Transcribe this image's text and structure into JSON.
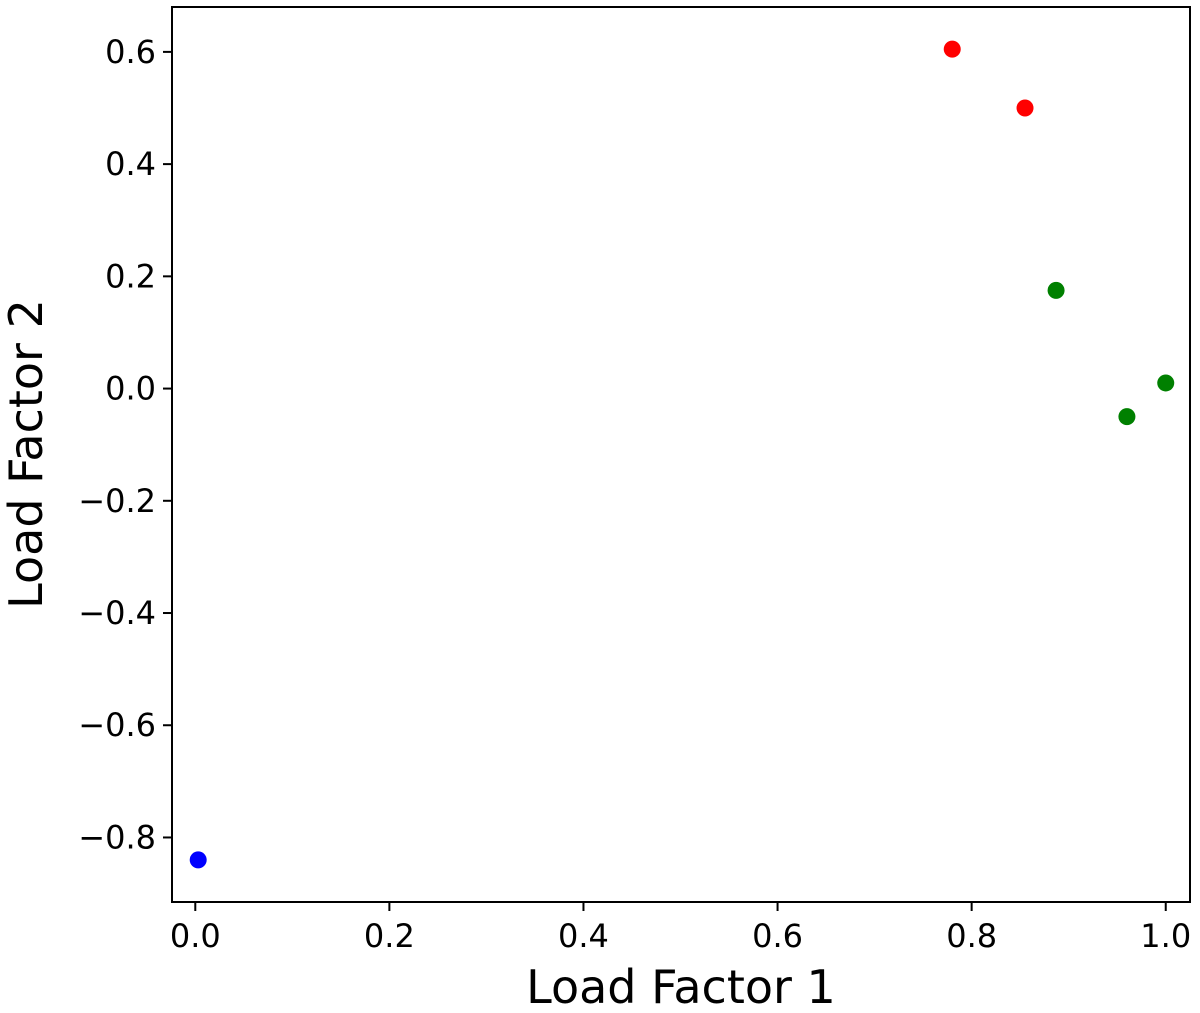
{
  "chart_data": {
    "type": "scatter",
    "title": "",
    "xlabel": "Load Factor 1",
    "ylabel": "Load Factor 2",
    "xlim": [
      -0.024,
      1.025
    ],
    "ylim": [
      -0.915,
      0.68
    ],
    "xticks": [
      0.0,
      0.2,
      0.4,
      0.6,
      0.8,
      1.0
    ],
    "xtick_labels": [
      "0.0",
      "0.2",
      "0.4",
      "0.6",
      "0.8",
      "1.0"
    ],
    "yticks": [
      -0.8,
      -0.6,
      -0.4,
      -0.2,
      0.0,
      0.2,
      0.4,
      0.6
    ],
    "ytick_labels": [
      "−0.8",
      "−0.6",
      "−0.4",
      "−0.2",
      "0.0",
      "0.2",
      "0.4",
      "0.6"
    ],
    "grid": false,
    "legend": "none",
    "points": [
      {
        "x": 0.003,
        "y": -0.84,
        "color": "#0000ff"
      },
      {
        "x": 0.78,
        "y": 0.605,
        "color": "#ff0000"
      },
      {
        "x": 0.855,
        "y": 0.5,
        "color": "#ff0000"
      },
      {
        "x": 0.887,
        "y": 0.175,
        "color": "#008000"
      },
      {
        "x": 0.96,
        "y": -0.05,
        "color": "#008000"
      },
      {
        "x": 1.0,
        "y": 0.01,
        "color": "#008000"
      }
    ]
  }
}
